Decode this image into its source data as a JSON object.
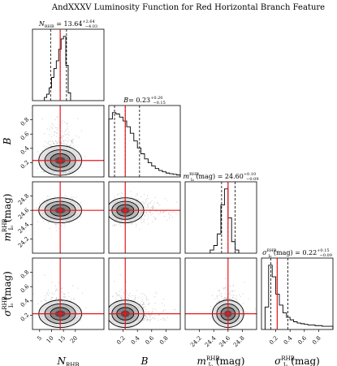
{
  "chart_data": {
    "type": "corner",
    "title": "AndXXXV Luminosity Function for Red Horizontal Branch Feature",
    "parameters": [
      {
        "key": "N",
        "label_main": "N",
        "label_sub": "RHB",
        "label_sup": "",
        "label_unit": "",
        "panel_title_prefix": "N",
        "panel_title_sub": "RHB",
        "panel_title_sup": "",
        "panel_title_unit": "",
        "panel_title_value": "= 13.64",
        "panel_title_plus": "+2.64",
        "panel_title_minus": "−4.03",
        "median": 13.64,
        "plus": 2.64,
        "minus": 4.03,
        "range": [
          2,
          32
        ],
        "ticks": [
          5,
          10,
          15,
          20
        ],
        "tick_labels": [
          "5",
          "10",
          "15",
          "20"
        ],
        "hist_x": [
          7.5,
          8.5,
          9.5,
          10.5,
          11.5,
          12.5,
          13.5,
          14.5,
          15.5,
          16.5,
          17.5
        ],
        "hist_y": [
          0.05,
          0.1,
          0.2,
          0.36,
          0.5,
          0.62,
          0.8,
          0.96,
          1.0,
          0.55,
          0.12
        ]
      },
      {
        "key": "B",
        "label_main": "B",
        "label_sub": "",
        "label_sup": "",
        "label_unit": "",
        "panel_title_prefix": "B",
        "panel_title_sub": "",
        "panel_title_sup": "",
        "panel_title_unit": "",
        "panel_title_value": "= 0.23",
        "panel_title_plus": "+0.20",
        "panel_title_minus": "−0.15",
        "median": 0.23,
        "plus": 0.2,
        "minus": 0.15,
        "range": [
          0.0,
          1.0
        ],
        "ticks": [
          0.2,
          0.4,
          0.6,
          0.8
        ],
        "tick_labels": [
          "0.2",
          "0.4",
          "0.6",
          "0.8"
        ],
        "hist_x": [
          0.025,
          0.075,
          0.125,
          0.175,
          0.225,
          0.275,
          0.325,
          0.375,
          0.425,
          0.475,
          0.525,
          0.575,
          0.625,
          0.675,
          0.725,
          0.775,
          0.825,
          0.875,
          0.925,
          0.975
        ],
        "hist_y": [
          0.9,
          1.0,
          0.98,
          0.93,
          0.87,
          0.78,
          0.68,
          0.56,
          0.45,
          0.36,
          0.28,
          0.22,
          0.17,
          0.13,
          0.1,
          0.08,
          0.06,
          0.05,
          0.04,
          0.03
        ]
      },
      {
        "key": "m",
        "label_main": "m",
        "label_sub": "I₀",
        "label_sup": "RHB",
        "label_unit": "(mag)",
        "panel_title_prefix": "m",
        "panel_title_sub": "I₀",
        "panel_title_sup": "RHB",
        "panel_title_unit": "(mag)",
        "panel_title_value": "= 24.60",
        "panel_title_plus": "+0.10",
        "panel_title_minus": "−0.09",
        "median": 24.6,
        "plus": 0.1,
        "minus": 0.09,
        "range": [
          24.0,
          25.0
        ],
        "ticks": [
          24.2,
          24.4,
          24.6,
          24.8
        ],
        "tick_labels": [
          "24.2",
          "24.4",
          "24.6",
          "24.8"
        ],
        "hist_x": [
          24.375,
          24.425,
          24.475,
          24.525,
          24.575,
          24.625,
          24.675,
          24.725
        ],
        "hist_y": [
          0.05,
          0.12,
          0.3,
          0.75,
          1.0,
          0.55,
          0.18,
          0.05
        ]
      },
      {
        "key": "sigma",
        "label_main": "σ",
        "label_sub": "I₀",
        "label_sup": "RHB",
        "label_unit": "(mag)",
        "panel_title_prefix": "σ",
        "panel_title_sub": "I₀",
        "panel_title_sup": "RHB",
        "panel_title_unit": "(mag)",
        "panel_title_value": "= 0.22",
        "panel_title_plus": "+0.15",
        "panel_title_minus": "−0.09",
        "median": 0.22,
        "plus": 0.15,
        "minus": 0.09,
        "range": [
          0.0,
          1.0
        ],
        "ticks": [
          0.2,
          0.4,
          0.6,
          0.8
        ],
        "tick_labels": [
          "0.2",
          "0.4",
          "0.6",
          "0.8"
        ],
        "hist_x": [
          0.075,
          0.125,
          0.175,
          0.225,
          0.275,
          0.325,
          0.375,
          0.425,
          0.475,
          0.525,
          0.575,
          0.625,
          0.675,
          0.725,
          0.775,
          0.825,
          0.875,
          0.925,
          0.975
        ],
        "hist_y": [
          0.35,
          1.0,
          0.82,
          0.55,
          0.38,
          0.26,
          0.19,
          0.15,
          0.12,
          0.1,
          0.09,
          0.08,
          0.07,
          0.07,
          0.06,
          0.06,
          0.05,
          0.05,
          0.05
        ]
      }
    ],
    "truth_line_color": "#e8161b",
    "quantile_line_style": "dashed",
    "contour_levels": 3,
    "density_map": "grey"
  }
}
